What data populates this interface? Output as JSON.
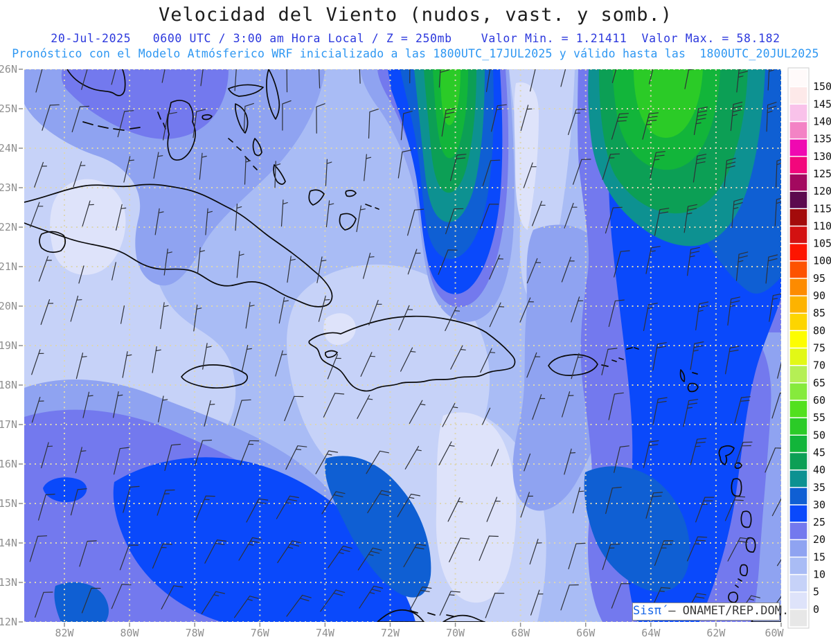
{
  "header": {
    "title": "Velocidad del Viento (nudos, vast. y somb.)",
    "line2": "20-Jul-2025   0600 UTC / 3:00 am Hora Local / Z = 250mb    Valor Min. = 1.21411  Valor Max. = 58.182",
    "line3": "Pronóstico con el Modelo Atmósferico WRF inicializado a las 1800UTC_17JUL2025 y válido hasta las  1800UTC_20JUL2025"
  },
  "axes": {
    "lat_labels": [
      "26N",
      "25N",
      "24N",
      "23N",
      "22N",
      "21N",
      "20N",
      "19N",
      "18N",
      "17N",
      "16N",
      "15N",
      "14N",
      "13N",
      "12N"
    ],
    "lon_labels": [
      "82W",
      "80W",
      "78W",
      "76W",
      "74W",
      "72W",
      "70W",
      "68W",
      "66W",
      "64W",
      "62W",
      "60W"
    ]
  },
  "colorbar": {
    "tick_labels": [
      "0",
      "5",
      "10",
      "15",
      "20",
      "25",
      "30",
      "35",
      "40",
      "45",
      "50",
      "55",
      "60",
      "65",
      "70",
      "75",
      "80",
      "85",
      "90",
      "95",
      "100",
      "105",
      "110",
      "115",
      "120",
      "125",
      "130",
      "135",
      "140",
      "145",
      "150"
    ],
    "colors_low_to_high": [
      "#e7e7e7",
      "#dee3fa",
      "#c6d2f8",
      "#a9bcf5",
      "#8fa3f1",
      "#7379ee",
      "#0a49fb",
      "#0f5fd3",
      "#0d9191",
      "#0c9f55",
      "#12b53a",
      "#2bcb27",
      "#52e01e",
      "#86ea3c",
      "#b5ef55",
      "#e2f816",
      "#fdfd02",
      "#fdd500",
      "#fdb300",
      "#fd8b00",
      "#fd5200",
      "#fd1500",
      "#d31111",
      "#a30b0b",
      "#5c0a4e",
      "#a3095f",
      "#f2077c",
      "#ef09b1",
      "#f383c5",
      "#f9c2ea",
      "#fde9e9",
      "#fffafa"
    ]
  },
  "attribution": {
    "brand": "Sisπ́",
    "text": " – ONAMET/REP.DOM."
  },
  "colors": {
    "title": "#1c1c1c",
    "line2": "#2c38dd",
    "line3": "#2e97f2",
    "axis_label": "#8f8f8f",
    "grid_dots": "#dcd6b4",
    "coastline": "#0a0a0a",
    "barb": "#2e3138",
    "attr_brand": "#1565e8",
    "attr_text": "#3a3a3a"
  },
  "chart_data": {
    "type": "heatmap",
    "title": "Velocidad del Viento (nudos, vast. y somb.)",
    "variable": "wind speed at 250mb shaded with wind barbs",
    "units": "nudos",
    "pressure_level": "250mb",
    "valid_time": "20-Jul-2025 0600 UTC / 3:00 am Hora Local",
    "model": "WRF",
    "model_init": "1800UTC_17JUL2025",
    "model_valid_until": "1800UTC_20JUL2025",
    "valor_min": 1.21411,
    "valor_max": 58.182,
    "lat_ticks": [
      "26N",
      "25N",
      "24N",
      "23N",
      "22N",
      "21N",
      "20N",
      "19N",
      "18N",
      "17N",
      "16N",
      "15N",
      "14N",
      "13N",
      "12N"
    ],
    "lon_ticks": [
      "82W",
      "80W",
      "78W",
      "76W",
      "74W",
      "72W",
      "70W",
      "68W",
      "66W",
      "64W",
      "62W",
      "60W"
    ],
    "colorbar_levels_kt": [
      0,
      5,
      10,
      15,
      20,
      25,
      30,
      35,
      40,
      45,
      50,
      55,
      60,
      65,
      70,
      75,
      80,
      85,
      90,
      95,
      100,
      105,
      110,
      115,
      120,
      125,
      130,
      135,
      140,
      145,
      150
    ],
    "field_values_read_from_shading": [
      {
        "location": "jet streak top-center near 70W 25-26N",
        "speed_kt": "45-55"
      },
      {
        "location": "jet streak top-right near 63W 24-26N",
        "speed_kt": "45-55"
      },
      {
        "location": "meridional band along ~64-66W from 12N to 22N",
        "speed_kt": "25-35"
      },
      {
        "location": "southwest Caribbean band 74-80W 12-15N",
        "speed_kt": "25-35"
      },
      {
        "location": "west of Cuba and central corridor over Hispaniola",
        "speed_kt": "5-15"
      },
      {
        "location": "pale minima (west, top corridor ~72W, bottom-center ~70W)",
        "speed_kt": "0-5"
      }
    ]
  }
}
